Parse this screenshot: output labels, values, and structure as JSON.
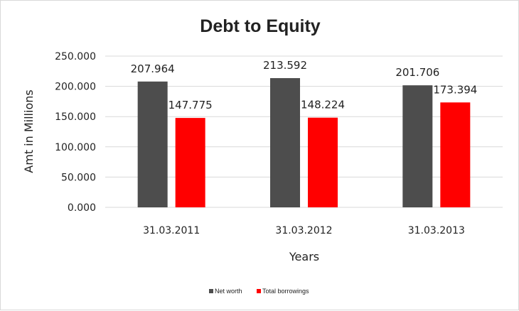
{
  "chart_data": {
    "type": "bar",
    "title": "Debt to Equity",
    "xlabel": "Years",
    "ylabel": "Amt in Millions",
    "categories": [
      "31.03.2011",
      "31.03.2012",
      "31.03.2013"
    ],
    "series": [
      {
        "name": "Net worth",
        "values": [
          207.964,
          213.592,
          201.706
        ],
        "value_labels": [
          "207.964",
          "213.592",
          "201.706"
        ],
        "color": "#4d4d4d"
      },
      {
        "name": "Total borrowings",
        "values": [
          147.775,
          148.224,
          173.394
        ],
        "value_labels": [
          "147.775",
          "148.224",
          "173.394"
        ],
        "color": "#ff0000"
      }
    ],
    "ylim": [
      0,
      250
    ],
    "yticks": [
      0,
      50,
      100,
      150,
      200,
      250
    ],
    "ytick_labels": [
      "0.000",
      "50.000",
      "100.000",
      "150.000",
      "200.000",
      "250.000"
    ],
    "grid": true,
    "legend_position": "bottom"
  }
}
